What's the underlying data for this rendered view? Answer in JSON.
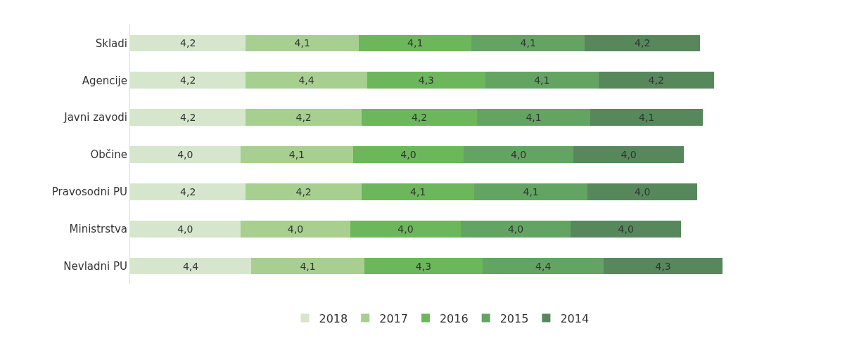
{
  "chart_data": {
    "type": "bar",
    "orientation": "horizontal",
    "stacked": true,
    "legend": "bottom",
    "tick_labels": "y",
    "categories": [
      "Skladi",
      "Agencije",
      "Javni zavodi",
      "Občine",
      "Pravosodni PU",
      "Ministrstva",
      "Nevladni PU"
    ],
    "series": [
      {
        "name": "2018",
        "color": "#d5e6cd",
        "values": [
          4.2,
          4.2,
          4.2,
          4.0,
          4.2,
          4.0,
          4.4
        ],
        "value_labels": [
          "4,2",
          "4,2",
          "4,2",
          "4,0",
          "4,2",
          "4,0",
          "4,4"
        ]
      },
      {
        "name": "2017",
        "color": "#a6cf90",
        "values": [
          4.1,
          4.4,
          4.2,
          4.1,
          4.2,
          4.0,
          4.1
        ],
        "value_labels": [
          "4,1",
          "4,4",
          "4,2",
          "4,1",
          "4,2",
          "4,0",
          "4,1"
        ]
      },
      {
        "name": "2016",
        "color": "#6cb65b",
        "values": [
          4.1,
          4.3,
          4.2,
          4.0,
          4.1,
          4.0,
          4.3
        ],
        "value_labels": [
          "4,1",
          "4,3",
          "4,2",
          "4,0",
          "4,1",
          "4,0",
          "4,3"
        ]
      },
      {
        "name": "2015",
        "color": "#64a463",
        "values": [
          4.1,
          4.1,
          4.1,
          4.0,
          4.1,
          4.0,
          4.4
        ],
        "value_labels": [
          "4,1",
          "4,1",
          "4,1",
          "4,0",
          "4,1",
          "4,0",
          "4,4"
        ]
      },
      {
        "name": "2014",
        "color": "#56885b",
        "values": [
          4.2,
          4.2,
          4.1,
          4.0,
          4.0,
          4.0,
          4.3
        ],
        "value_labels": [
          "4,2",
          "4,2",
          "4,1",
          "4,0",
          "4,0",
          "4,0",
          "4,3"
        ]
      }
    ]
  }
}
